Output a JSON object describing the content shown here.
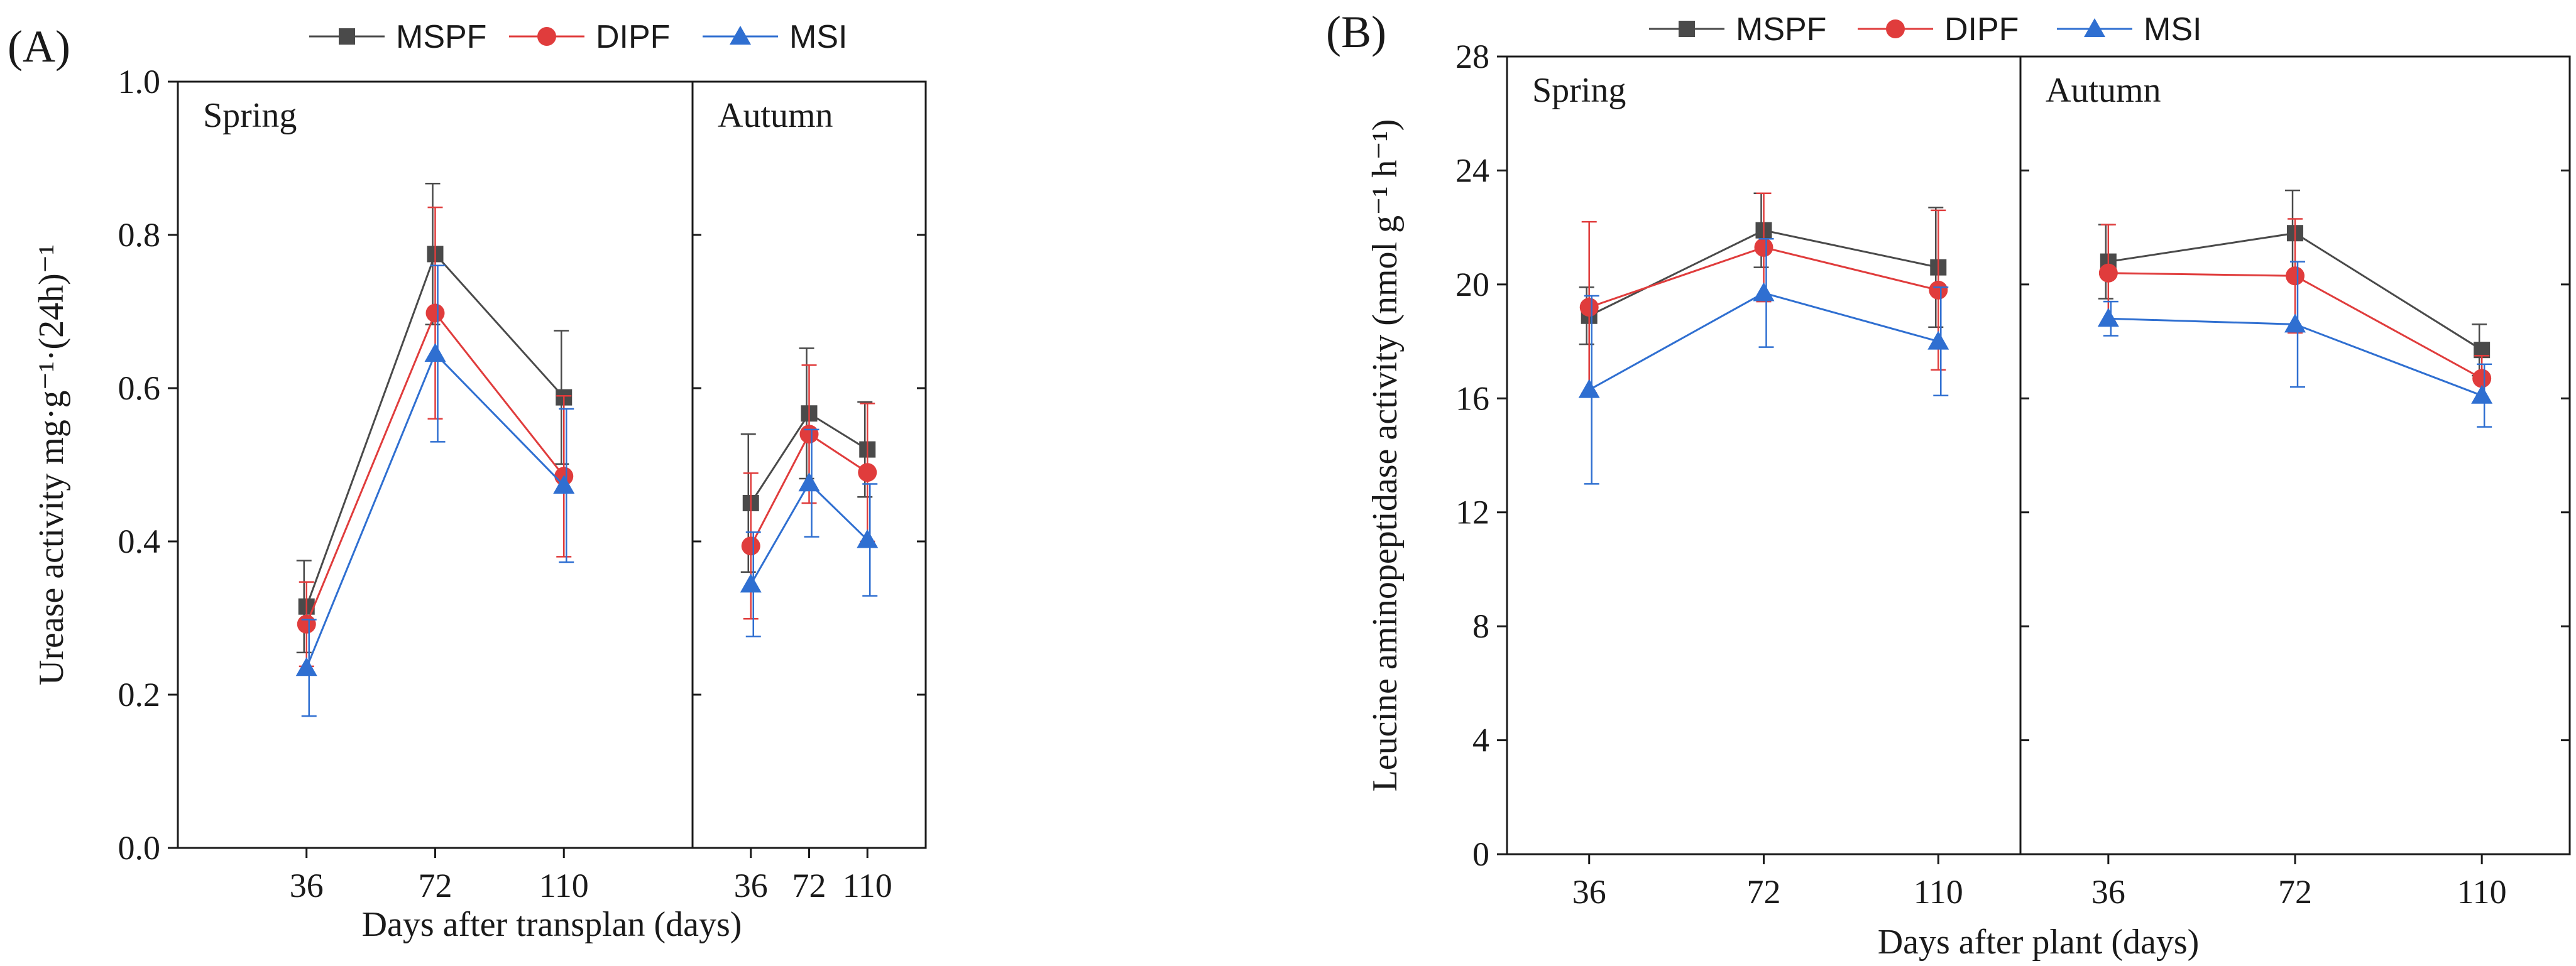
{
  "figure": {
    "colors": {
      "MSPF": "#4a4a4a",
      "DIPF": "#e03c3c",
      "MSI": "#2f6fd1",
      "axis": "#1a1a1a"
    }
  },
  "chart_data": [
    {
      "type": "line",
      "panel_label": "(A)",
      "xlabel": "Days after transplan (days)",
      "ylabel": "Urease activity  mg·g⁻¹·(24h)⁻¹",
      "ylim": [
        0,
        1.0
      ],
      "yticks": [
        "0.0",
        "0.2",
        "0.4",
        "0.6",
        "0.8",
        "1.0"
      ],
      "categories": [
        "36",
        "72",
        "110"
      ],
      "legend": [
        "MSPF",
        "DIPF",
        "MSI"
      ],
      "facets": [
        {
          "label": "Spring",
          "series": [
            {
              "name": "MSPF",
              "marker": "square",
              "values": [
                0.315,
                0.775,
                0.588
              ],
              "errors": [
                0.06,
                0.092,
                0.087
              ]
            },
            {
              "name": "DIPF",
              "marker": "circle",
              "values": [
                0.292,
                0.698,
                0.485
              ],
              "errors": [
                0.055,
                0.138,
                0.105
              ]
            },
            {
              "name": "MSI",
              "marker": "triangle",
              "values": [
                0.235,
                0.645,
                0.473
              ],
              "errors": [
                0.063,
                0.115,
                0.1
              ]
            }
          ]
        },
        {
          "label": "Autumn",
          "series": [
            {
              "name": "MSPF",
              "marker": "square",
              "values": [
                0.45,
                0.567,
                0.52
              ],
              "errors": [
                0.09,
                0.085,
                0.062
              ]
            },
            {
              "name": "DIPF",
              "marker": "circle",
              "values": [
                0.394,
                0.54,
                0.49
              ],
              "errors": [
                0.095,
                0.09,
                0.09
              ]
            },
            {
              "name": "MSI",
              "marker": "triangle",
              "values": [
                0.344,
                0.476,
                0.402
              ],
              "errors": [
                0.068,
                0.07,
                0.073
              ]
            }
          ]
        }
      ]
    },
    {
      "type": "line",
      "panel_label": "(B)",
      "xlabel": "Days after plant (days)",
      "ylabel": "Leucine aminopeptidase activity  (nmol g⁻¹ h⁻¹)",
      "ylim": [
        0,
        28
      ],
      "yticks": [
        "0",
        "4",
        "8",
        "12",
        "16",
        "20",
        "24",
        "28"
      ],
      "categories": [
        "36",
        "72",
        "110"
      ],
      "legend": [
        "MSPF",
        "DIPF",
        "MSI"
      ],
      "facets": [
        {
          "label": "Spring",
          "series": [
            {
              "name": "MSPF",
              "marker": "square",
              "values": [
                18.9,
                21.9,
                20.6
              ],
              "errors": [
                1.0,
                1.3,
                2.1
              ]
            },
            {
              "name": "DIPF",
              "marker": "circle",
              "values": [
                19.2,
                21.3,
                19.8
              ],
              "errors": [
                3.0,
                1.9,
                2.8
              ]
            },
            {
              "name": "MSI",
              "marker": "triangle",
              "values": [
                16.3,
                19.7,
                18.0
              ],
              "errors": [
                3.3,
                1.9,
                1.9
              ]
            }
          ]
        },
        {
          "label": "Autumn",
          "series": [
            {
              "name": "MSPF",
              "marker": "square",
              "values": [
                20.8,
                21.8,
                17.7
              ],
              "errors": [
                1.3,
                1.5,
                0.9
              ]
            },
            {
              "name": "DIPF",
              "marker": "circle",
              "values": [
                20.4,
                20.3,
                16.7
              ],
              "errors": [
                1.7,
                2.0,
                0.8
              ]
            },
            {
              "name": "MSI",
              "marker": "triangle",
              "values": [
                18.8,
                18.6,
                16.1
              ],
              "errors": [
                0.6,
                2.2,
                1.1
              ]
            }
          ]
        }
      ]
    }
  ]
}
